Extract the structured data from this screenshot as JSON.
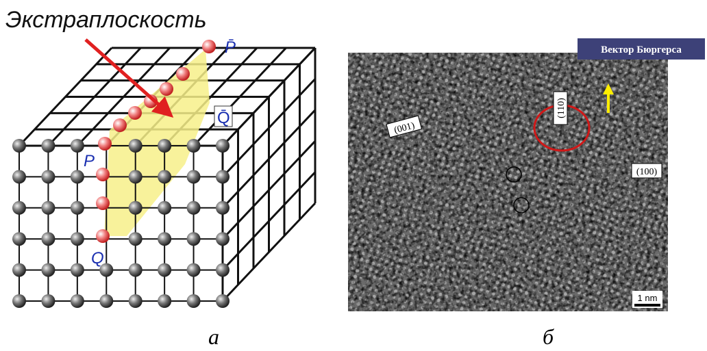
{
  "title": "Экстраплоскость",
  "lattice_labels": {
    "p_bar": "P̄",
    "q_bar": "Q̄",
    "p": "P",
    "q": "Q"
  },
  "micrograph": {
    "burgers_label": "Вектор Бюргерса",
    "planes": [
      "(001)",
      "(110)",
      "(100)"
    ],
    "scale_bar": "1 nm"
  },
  "captions": [
    "а",
    "б"
  ]
}
